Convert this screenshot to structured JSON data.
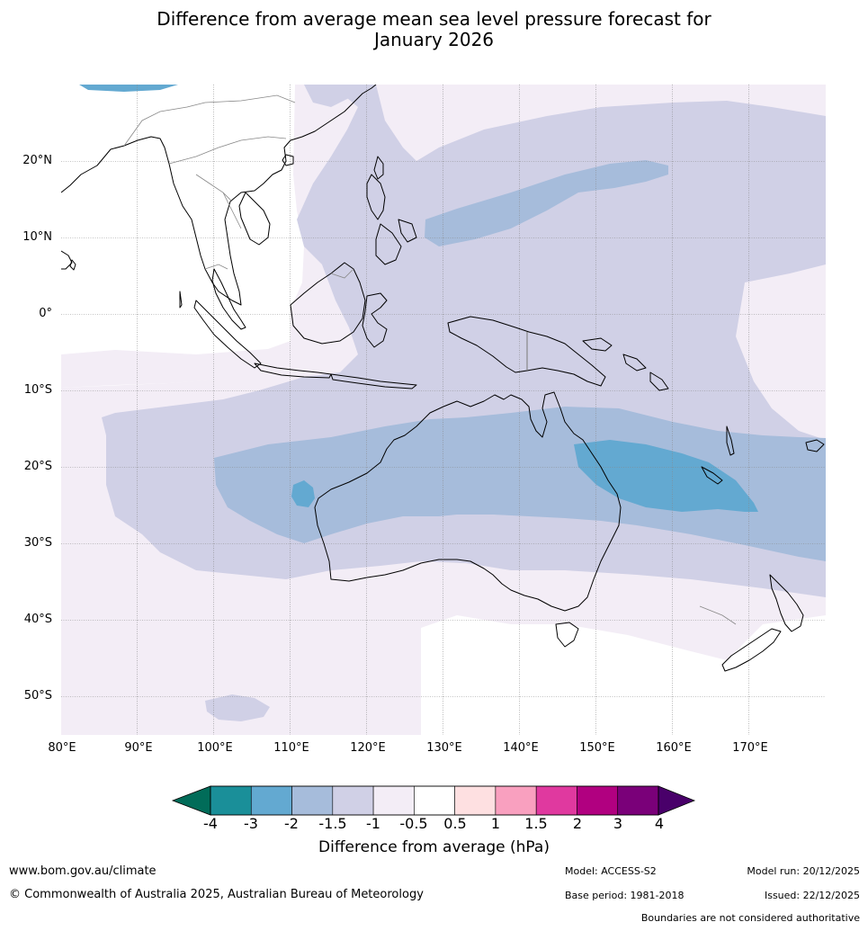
{
  "title": {
    "line1": "Difference from average mean sea level pressure forecast for",
    "line2": "January 2026"
  },
  "map": {
    "lat_labels": [
      "20°N",
      "10°N",
      "0°",
      "10°S",
      "20°S",
      "30°S",
      "40°S",
      "50°S"
    ],
    "lon_labels": [
      "80°E",
      "90°E",
      "100°E",
      "110°E",
      "120°E",
      "130°E",
      "140°E",
      "150°E",
      "160°E",
      "170°E"
    ],
    "lat_values": [
      20,
      10,
      0,
      -10,
      -20,
      -30,
      -40,
      -50
    ],
    "lon_values": [
      80,
      90,
      100,
      110,
      120,
      130,
      140,
      150,
      160,
      170
    ],
    "lon_range": [
      80,
      180
    ],
    "lat_range": [
      -55,
      30
    ]
  },
  "colorbar": {
    "title": "Difference from average (hPa)",
    "ticks": [
      "-4",
      "-3",
      "-2",
      "-1.5",
      "-1",
      "-0.5",
      "0.5",
      "1",
      "1.5",
      "2",
      "3",
      "4"
    ],
    "colors": [
      "#1a8f99",
      "#63a9d1",
      "#a6bcdb",
      "#d0d0e6",
      "#f3edf6",
      "#ffffff",
      "#fee0e1",
      "#f9a0bf",
      "#e0399f",
      "#b10080",
      "#7a0079"
    ],
    "low_color": "#016c59",
    "high_color": "#49006a"
  },
  "footer": {
    "website": "www.bom.gov.au/climate",
    "copyright": "© Commonwealth of Australia 2025, Australian Bureau of Meteorology",
    "model": "Model: ACCESS-S2",
    "base_period": "Base period: 1981-2018",
    "model_run": "Model run: 20/12/2025",
    "issued": "Issued: 22/12/2025",
    "disclaimer": "Boundaries are not considered authoritative"
  }
}
